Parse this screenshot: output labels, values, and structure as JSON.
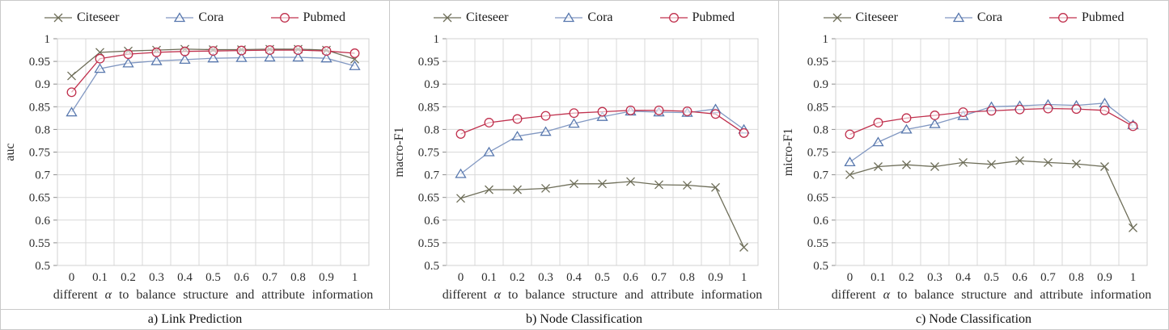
{
  "figure": {
    "colors": {
      "grid": "#d9d9d9",
      "plot_border": "#d0d0d0",
      "tick_mark": "#8c8c8c",
      "axis_text": "#2e2e2e",
      "panel_border": "#c9c9c9",
      "background": "#ffffff"
    },
    "legend": [
      {
        "label": "Citeseer",
        "marker": "x-marker-icon",
        "line_color": "#6e6e59",
        "marker_color": "#6e6e59"
      },
      {
        "label": "Cora",
        "marker": "triangle-marker-icon",
        "line_color": "#8298c2",
        "marker_color": "#5878ae"
      },
      {
        "label": "Pubmed",
        "marker": "circle-marker-icon",
        "line_color": "#c0304d",
        "marker_color": "#c0304d"
      }
    ],
    "xlabel": {
      "pre": "different",
      "alpha": "α",
      "post": "to balance structure and attribute information"
    },
    "x_ticks": [
      "0",
      "0.1",
      "0.2",
      "0.3",
      "0.4",
      "0.5",
      "0.6",
      "0.7",
      "0.8",
      "0.9",
      "1"
    ],
    "y_ticks": [
      "1",
      "0.95",
      "0.9",
      "0.85",
      "0.8",
      "0.75",
      "0.7",
      "0.65",
      "0.6",
      "0.55",
      "0.5"
    ],
    "ylim": [
      0.5,
      1.0
    ],
    "grid": "on",
    "legend_position": "top"
  },
  "chart_data": [
    {
      "type": "line",
      "caption": "a) Link Prediction",
      "ylabel": "auc",
      "x": [
        0,
        0.1,
        0.2,
        0.3,
        0.4,
        0.5,
        0.6,
        0.7,
        0.8,
        0.9,
        1
      ],
      "ylim": [
        0.5,
        1.0
      ],
      "series": [
        {
          "name": "Citeseer",
          "values": [
            0.918,
            0.97,
            0.973,
            0.975,
            0.977,
            0.976,
            0.976,
            0.977,
            0.977,
            0.975,
            0.955
          ]
        },
        {
          "name": "Cora",
          "values": [
            0.838,
            0.934,
            0.946,
            0.951,
            0.954,
            0.957,
            0.958,
            0.959,
            0.959,
            0.957,
            0.94
          ]
        },
        {
          "name": "Pubmed",
          "values": [
            0.882,
            0.956,
            0.966,
            0.97,
            0.972,
            0.973,
            0.974,
            0.975,
            0.975,
            0.973,
            0.968
          ]
        }
      ]
    },
    {
      "type": "line",
      "caption": "b) Node Classification",
      "ylabel": "macro-F1",
      "x": [
        0,
        0.1,
        0.2,
        0.3,
        0.4,
        0.5,
        0.6,
        0.7,
        0.8,
        0.9,
        1
      ],
      "ylim": [
        0.5,
        1.0
      ],
      "series": [
        {
          "name": "Citeseer",
          "values": [
            0.648,
            0.667,
            0.667,
            0.67,
            0.68,
            0.68,
            0.685,
            0.678,
            0.677,
            0.672,
            0.54
          ]
        },
        {
          "name": "Cora",
          "values": [
            0.702,
            0.75,
            0.785,
            0.795,
            0.813,
            0.828,
            0.84,
            0.838,
            0.837,
            0.845,
            0.8
          ]
        },
        {
          "name": "Pubmed",
          "values": [
            0.79,
            0.815,
            0.823,
            0.83,
            0.836,
            0.839,
            0.842,
            0.842,
            0.84,
            0.834,
            0.792
          ]
        }
      ]
    },
    {
      "type": "line",
      "caption": "c) Node Classification",
      "ylabel": "micro-F1",
      "x": [
        0,
        0.1,
        0.2,
        0.3,
        0.4,
        0.5,
        0.6,
        0.7,
        0.8,
        0.9,
        1
      ],
      "ylim": [
        0.5,
        1.0
      ],
      "series": [
        {
          "name": "Citeseer",
          "values": [
            0.7,
            0.718,
            0.722,
            0.718,
            0.727,
            0.723,
            0.731,
            0.727,
            0.724,
            0.718,
            0.583
          ]
        },
        {
          "name": "Cora",
          "values": [
            0.728,
            0.772,
            0.8,
            0.812,
            0.83,
            0.85,
            0.852,
            0.855,
            0.853,
            0.858,
            0.81
          ]
        },
        {
          "name": "Pubmed",
          "values": [
            0.789,
            0.815,
            0.825,
            0.831,
            0.838,
            0.841,
            0.844,
            0.846,
            0.845,
            0.842,
            0.807
          ]
        }
      ]
    }
  ]
}
